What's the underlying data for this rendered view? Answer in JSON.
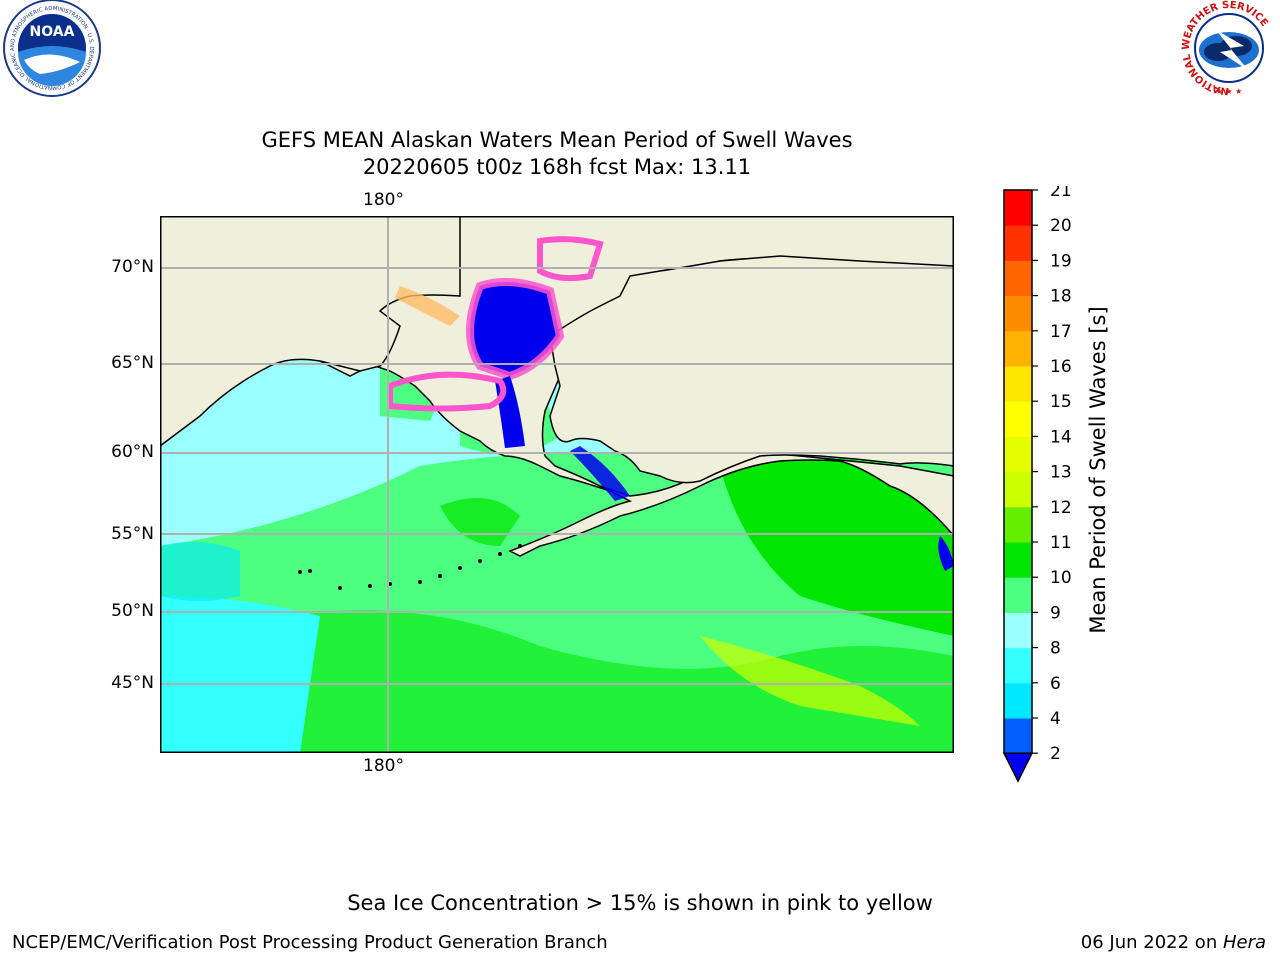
{
  "header": {
    "title_line1": "GEFS MEAN Alaskan Waters Mean Period of Swell Waves",
    "title_line2": "20220605 t00z 168h fcst   Max: 13.11"
  },
  "logos": {
    "left": "NOAA",
    "left_ring": "NATIONAL OCEANIC AND ATMOSPHERIC ADMINISTRATION · U.S. DEPARTMENT OF COMMERCE",
    "right_ring": "NATIONAL WEATHER SERVICE"
  },
  "map": {
    "lon_label_top": "180°",
    "lon_label_bottom": "180°",
    "lat_labels": [
      "70°N",
      "65°N",
      "60°N",
      "55°N",
      "50°N",
      "45°N"
    ],
    "land_color": "#efefdc",
    "grid_color": "#b0b0b0"
  },
  "colorbar": {
    "label": "Mean Period of Swell Waves [s]",
    "ticks": [
      "2",
      "4",
      "6",
      "8",
      "9",
      "10",
      "11",
      "12",
      "13",
      "14",
      "15",
      "16",
      "17",
      "18",
      "19",
      "20",
      "21"
    ],
    "colors": [
      "#0060ff",
      "#00e8ff",
      "#33ffff",
      "#99ffff",
      "#4dff80",
      "#00e600",
      "#66ee00",
      "#ccff00",
      "#e6ff00",
      "#ffff00",
      "#ffe600",
      "#ffb300",
      "#ff8c00",
      "#ff6600",
      "#ff3300",
      "#ff0000"
    ],
    "under_color": "#0000ee"
  },
  "note": "Sea Ice Concentration > 15% is shown in pink to yellow",
  "footer": {
    "left": "NCEP/EMC/Verification Post Processing Product Generation Branch",
    "right_prefix": "06 Jun 2022 on ",
    "right_machine": "Hera"
  }
}
